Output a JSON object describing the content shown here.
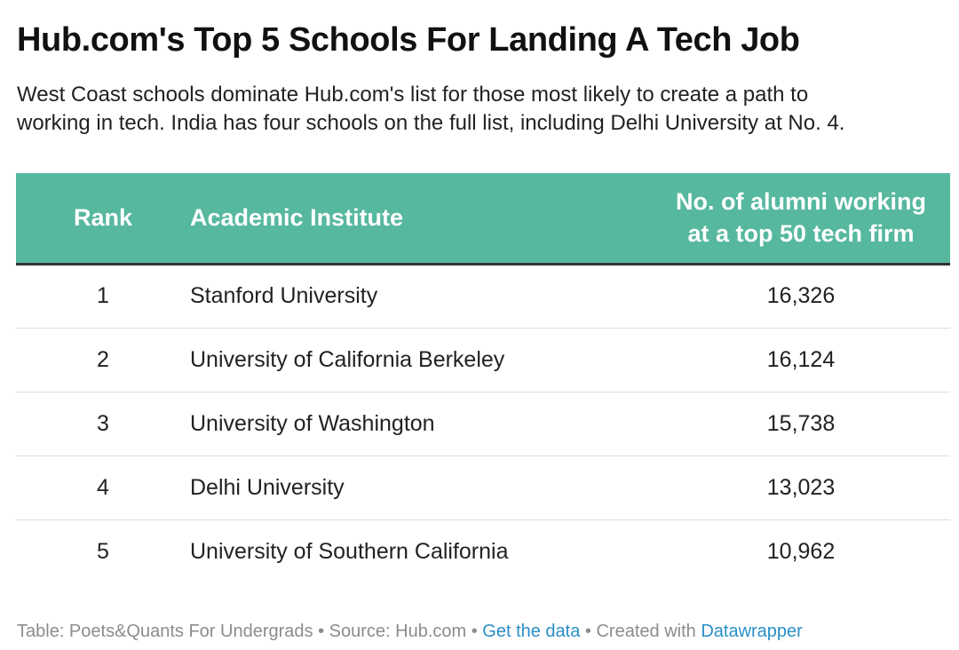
{
  "title": "Hub.com's Top 5 Schools For Landing A Tech Job",
  "subtitle": {
    "line1": "West Coast schools dominate Hub.com's list for those most likely to create a path to",
    "line2": "working in tech. India has four schools on the full list, including Delhi University at No. 4."
  },
  "colors": {
    "header_bg": "#56b89f",
    "link": "#2a8fc7"
  },
  "chart_data": {
    "type": "table",
    "title": "Hub.com's Top 5 Schools For Landing A Tech Job",
    "columns": {
      "rank": "Rank",
      "institute": "Academic Institute",
      "alumni_line1": "No. of alumni working",
      "alumni_line2": "at a top 50 tech firm"
    },
    "rows": [
      {
        "rank": "1",
        "institute": "Stanford University",
        "alumni": "16,326"
      },
      {
        "rank": "2",
        "institute": "University of California Berkeley",
        "alumni": "16,124"
      },
      {
        "rank": "3",
        "institute": "University of Washington",
        "alumni": "15,738"
      },
      {
        "rank": "4",
        "institute": "Delhi University",
        "alumni": "13,023"
      },
      {
        "rank": "5",
        "institute": "University of Southern California",
        "alumni": "10,962"
      }
    ]
  },
  "footer": {
    "credit": "Table: Poets&Quants For Undergrads",
    "separator": " • ",
    "source": "Source: Hub.com",
    "get_data": "Get the data",
    "created_with": "Created with",
    "datawrapper": "Datawrapper"
  }
}
